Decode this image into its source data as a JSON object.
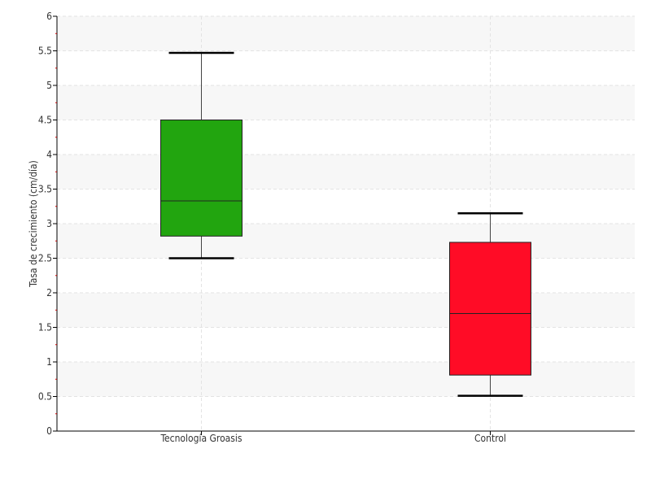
{
  "chart_data": {
    "type": "boxplot",
    "title": "",
    "xlabel": "",
    "ylabel": "Tasa de crecimiento (cm/día)",
    "ylim": [
      0,
      6
    ],
    "yticks": [
      "0",
      "0.5",
      "1",
      "1.5",
      "2",
      "2.5",
      "3",
      "3.5",
      "4",
      "4.5",
      "5",
      "5.5",
      "6"
    ],
    "grid": true,
    "categories": [
      "Tecnología Groasis",
      "Control"
    ],
    "boxes": [
      {
        "category": "Tecnología Groasis",
        "min": 2.5,
        "q1": 2.82,
        "median": 3.33,
        "q3": 4.5,
        "max": 5.47,
        "color": "#22a50f"
      },
      {
        "category": "Control",
        "min": 0.51,
        "q1": 0.81,
        "median": 1.7,
        "q3": 2.73,
        "max": 3.15,
        "color": "#ff0c26"
      }
    ],
    "colors": {
      "band": "#f7f7f7",
      "grid": "#e3e3e3",
      "axis": "#000000",
      "minor_tick": "#cc0000"
    }
  }
}
